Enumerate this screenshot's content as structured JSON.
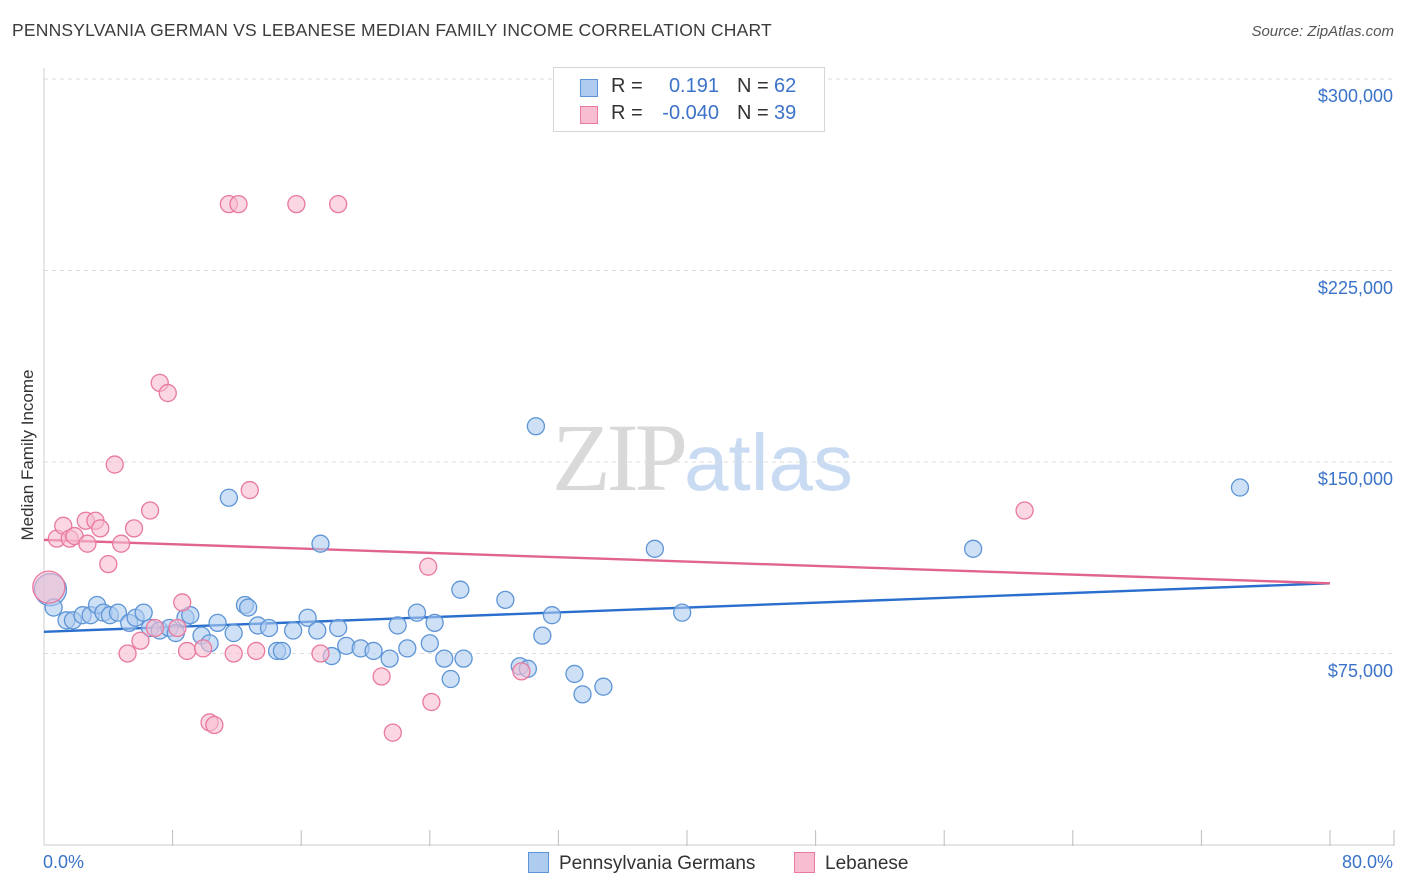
{
  "title": "PENNSYLVANIA GERMAN VS LEBANESE MEDIAN FAMILY INCOME CORRELATION CHART",
  "source": "Source: ZipAtlas.com",
  "watermark": {
    "zip": "ZIP",
    "atlas": "atlas"
  },
  "legend_top": {
    "rows": [
      {
        "r_label": "R =",
        "r_value": "0.191",
        "n_label": "N =",
        "n_value": "62"
      },
      {
        "r_label": "R =",
        "r_value": "-0.040",
        "n_label": "N =",
        "n_value": "39"
      }
    ]
  },
  "colors": {
    "blue_fill": "#aecbf0",
    "blue_stroke": "#5e95d6",
    "blue_line": "#2a6fce",
    "pink_fill": "#f7bdd0",
    "pink_stroke": "#e9799f",
    "pink_line": "#e0648f",
    "axis_text": "#3b73c8",
    "grid": "#dddddd"
  },
  "chart_data": {
    "type": "scatter",
    "title": "PENNSYLVANIA GERMAN VS LEBANESE MEDIAN FAMILY INCOME CORRELATION CHART",
    "xlabel": "",
    "ylabel": "Median Family Income",
    "x_tick_labels": [
      "0.0%",
      "80.0%"
    ],
    "y_tick_labels": [
      "$75,000",
      "$150,000",
      "$225,000",
      "$300,000"
    ],
    "y_ticks": [
      75000,
      150000,
      225000,
      300000
    ],
    "xlim": [
      0,
      80
    ],
    "ylim": [
      0,
      307000
    ],
    "grid": true,
    "legend": "bottom-center",
    "series": [
      {
        "name": "Pennsylvania Germans",
        "color": "blue",
        "trend": {
          "x": [
            0,
            80
          ],
          "y": [
            83500,
            102500
          ]
        },
        "points": [
          [
            0.4,
            100000
          ],
          [
            0.6,
            93000
          ],
          [
            1.4,
            88000
          ],
          [
            1.8,
            88000
          ],
          [
            2.4,
            90000
          ],
          [
            2.9,
            90000
          ],
          [
            3.3,
            94000
          ],
          [
            3.7,
            91000
          ],
          [
            4.1,
            90000
          ],
          [
            4.6,
            91000
          ],
          [
            5.3,
            87000
          ],
          [
            5.7,
            89000
          ],
          [
            6.2,
            91000
          ],
          [
            6.6,
            85000
          ],
          [
            7.2,
            84000
          ],
          [
            7.8,
            85000
          ],
          [
            8.2,
            83000
          ],
          [
            8.8,
            89000
          ],
          [
            9.1,
            90000
          ],
          [
            9.8,
            82000
          ],
          [
            10.3,
            79000
          ],
          [
            10.8,
            87000
          ],
          [
            11.5,
            136000
          ],
          [
            11.8,
            83000
          ],
          [
            12.5,
            94000
          ],
          [
            12.7,
            93000
          ],
          [
            13.3,
            86000
          ],
          [
            14.0,
            85000
          ],
          [
            14.5,
            76000
          ],
          [
            14.8,
            76000
          ],
          [
            15.5,
            84000
          ],
          [
            16.4,
            89000
          ],
          [
            17.0,
            84000
          ],
          [
            17.2,
            118000
          ],
          [
            17.9,
            74000
          ],
          [
            18.3,
            85000
          ],
          [
            18.8,
            78000
          ],
          [
            19.7,
            77000
          ],
          [
            20.5,
            76000
          ],
          [
            21.5,
            73000
          ],
          [
            22.0,
            86000
          ],
          [
            22.6,
            77000
          ],
          [
            23.2,
            91000
          ],
          [
            24.0,
            79000
          ],
          [
            24.3,
            87000
          ],
          [
            24.9,
            73000
          ],
          [
            25.3,
            65000
          ],
          [
            25.9,
            100000
          ],
          [
            26.1,
            73000
          ],
          [
            28.7,
            96000
          ],
          [
            29.6,
            70000
          ],
          [
            30.1,
            69000
          ],
          [
            30.6,
            164000
          ],
          [
            31.0,
            82000
          ],
          [
            31.6,
            90000
          ],
          [
            33.0,
            67000
          ],
          [
            33.5,
            59000
          ],
          [
            34.8,
            62000
          ],
          [
            38.0,
            116000
          ],
          [
            39.7,
            91000
          ],
          [
            57.8,
            116000
          ],
          [
            74.4,
            140000
          ]
        ]
      },
      {
        "name": "Lebanese",
        "color": "pink",
        "trend": {
          "x": [
            0,
            80
          ],
          "y": [
            119500,
            102500
          ]
        },
        "points": [
          [
            0.3,
            101000
          ],
          [
            0.8,
            120000
          ],
          [
            1.2,
            125000
          ],
          [
            1.6,
            120000
          ],
          [
            1.9,
            121000
          ],
          [
            2.6,
            127000
          ],
          [
            2.7,
            118000
          ],
          [
            3.2,
            127000
          ],
          [
            3.5,
            124000
          ],
          [
            4.0,
            110000
          ],
          [
            4.4,
            149000
          ],
          [
            4.8,
            118000
          ],
          [
            5.2,
            75000
          ],
          [
            5.6,
            124000
          ],
          [
            6.0,
            80000
          ],
          [
            6.6,
            131000
          ],
          [
            6.9,
            85000
          ],
          [
            7.2,
            181000
          ],
          [
            7.7,
            177000
          ],
          [
            8.3,
            85000
          ],
          [
            8.6,
            95000
          ],
          [
            8.9,
            76000
          ],
          [
            9.9,
            77000
          ],
          [
            10.3,
            48000
          ],
          [
            10.6,
            47000
          ],
          [
            11.5,
            251000
          ],
          [
            11.8,
            75000
          ],
          [
            12.1,
            251000
          ],
          [
            12.8,
            139000
          ],
          [
            13.2,
            76000
          ],
          [
            15.7,
            251000
          ],
          [
            17.2,
            75000
          ],
          [
            18.3,
            251000
          ],
          [
            21.0,
            66000
          ],
          [
            21.7,
            44000
          ],
          [
            23.9,
            109000
          ],
          [
            24.1,
            56000
          ],
          [
            29.7,
            68000
          ],
          [
            61.0,
            131000
          ]
        ]
      }
    ]
  }
}
